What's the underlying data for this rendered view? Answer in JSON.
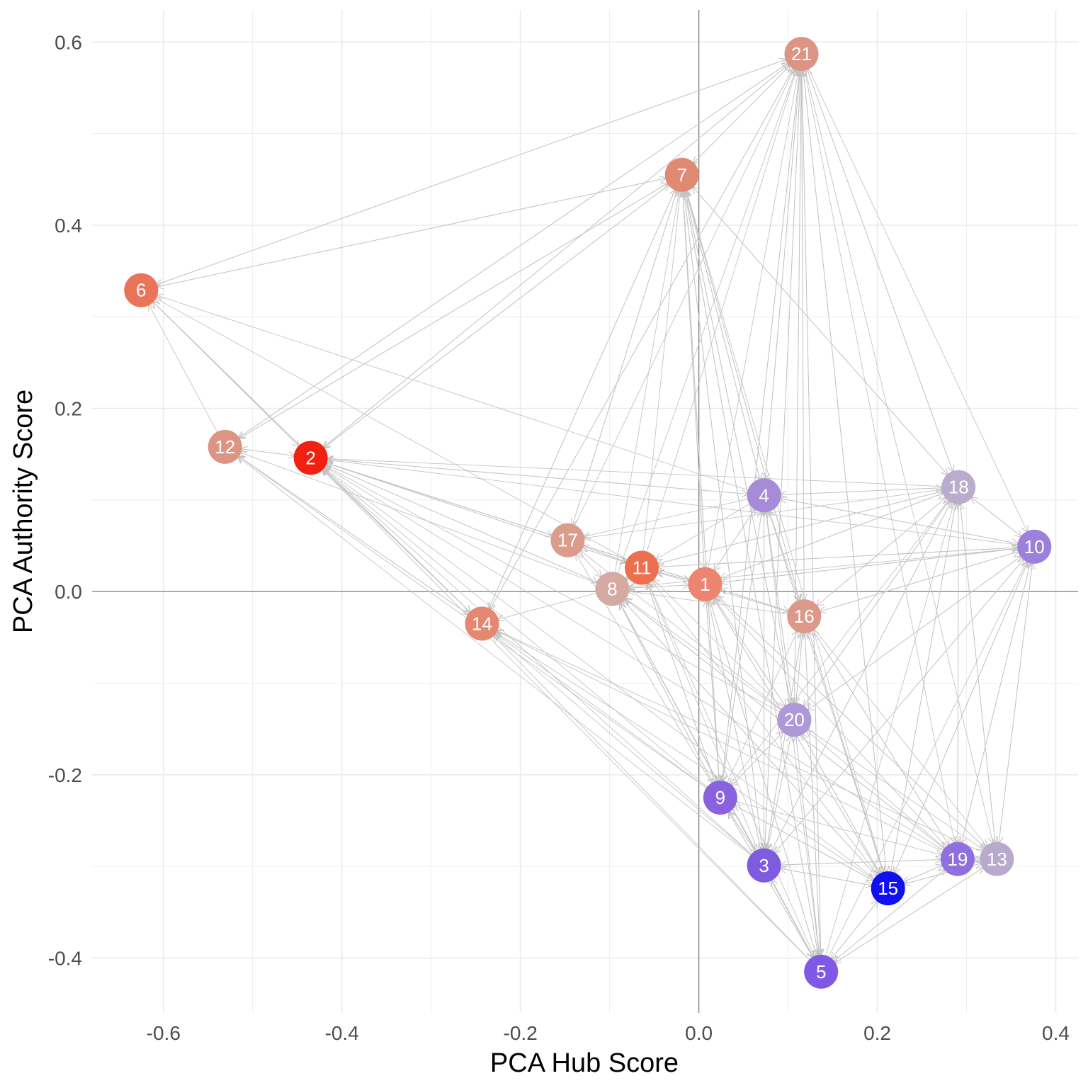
{
  "chart_data": {
    "type": "scatter",
    "xlabel": "PCA Hub Score",
    "ylabel": "PCA Authority Score",
    "xlim": [
      -0.68,
      0.425
    ],
    "ylim": [
      -0.46,
      0.635
    ],
    "x_ticks": [
      -0.6,
      -0.4,
      -0.2,
      0.0,
      0.2,
      0.4
    ],
    "x_tick_labels": [
      "-0.6",
      "-0.4",
      "-0.2",
      "0.0",
      "0.2",
      "0.4"
    ],
    "y_ticks": [
      -0.4,
      -0.2,
      0.0,
      0.2,
      0.4,
      0.6
    ],
    "y_tick_labels": [
      "-0.4",
      "-0.2",
      "0.0",
      "0.2",
      "0.4",
      "0.6"
    ],
    "grid": true,
    "reference_lines": {
      "x": 0,
      "y": 0
    },
    "edge_color": "#c4c4c4",
    "nodes": [
      {
        "label": "1",
        "x": 0.007,
        "y": 0.008,
        "color": "#ec8570"
      },
      {
        "label": "2",
        "x": -0.435,
        "y": 0.146,
        "color": "#f22010"
      },
      {
        "label": "3",
        "x": 0.073,
        "y": -0.299,
        "color": "#7f5be0"
      },
      {
        "label": "4",
        "x": 0.073,
        "y": 0.105,
        "color": "#a78bd8"
      },
      {
        "label": "5",
        "x": 0.137,
        "y": -0.415,
        "color": "#8058e8"
      },
      {
        "label": "6",
        "x": -0.625,
        "y": 0.329,
        "color": "#ea7458"
      },
      {
        "label": "7",
        "x": -0.019,
        "y": 0.455,
        "color": "#e08a74"
      },
      {
        "label": "8",
        "x": -0.097,
        "y": 0.003,
        "color": "#d4aaa2"
      },
      {
        "label": "9",
        "x": 0.024,
        "y": -0.225,
        "color": "#8a62e0"
      },
      {
        "label": "10",
        "x": 0.376,
        "y": 0.049,
        "color": "#9c80dc"
      },
      {
        "label": "11",
        "x": -0.064,
        "y": 0.026,
        "color": "#ec7050"
      },
      {
        "label": "12",
        "x": -0.531,
        "y": 0.158,
        "color": "#de9482"
      },
      {
        "label": "13",
        "x": 0.334,
        "y": -0.292,
        "color": "#b8aacc"
      },
      {
        "label": "14",
        "x": -0.243,
        "y": -0.035,
        "color": "#e48872"
      },
      {
        "label": "15",
        "x": 0.212,
        "y": -0.324,
        "color": "#1010f0"
      },
      {
        "label": "16",
        "x": 0.118,
        "y": -0.027,
        "color": "#dc9888"
      },
      {
        "label": "17",
        "x": -0.147,
        "y": 0.056,
        "color": "#dc9c8c"
      },
      {
        "label": "18",
        "x": 0.291,
        "y": 0.114,
        "color": "#baaccc"
      },
      {
        "label": "19",
        "x": 0.29,
        "y": -0.292,
        "color": "#9070e0"
      },
      {
        "label": "20",
        "x": 0.107,
        "y": -0.14,
        "color": "#ae98d8"
      },
      {
        "label": "21",
        "x": 0.115,
        "y": 0.587,
        "color": "#dc9484"
      }
    ],
    "edges": [
      [
        "7",
        "21"
      ],
      [
        "6",
        "21"
      ],
      [
        "12",
        "21"
      ],
      [
        "2",
        "21"
      ],
      [
        "14",
        "21"
      ],
      [
        "17",
        "21"
      ],
      [
        "8",
        "21"
      ],
      [
        "11",
        "21"
      ],
      [
        "1",
        "21"
      ],
      [
        "4",
        "21"
      ],
      [
        "16",
        "21"
      ],
      [
        "20",
        "21"
      ],
      [
        "9",
        "21"
      ],
      [
        "3",
        "21"
      ],
      [
        "5",
        "21"
      ],
      [
        "15",
        "21"
      ],
      [
        "18",
        "21"
      ],
      [
        "21",
        "7"
      ],
      [
        "6",
        "7"
      ],
      [
        "12",
        "7"
      ],
      [
        "2",
        "7"
      ],
      [
        "14",
        "7"
      ],
      [
        "17",
        "7"
      ],
      [
        "8",
        "7"
      ],
      [
        "11",
        "7"
      ],
      [
        "1",
        "7"
      ],
      [
        "4",
        "7"
      ],
      [
        "16",
        "7"
      ],
      [
        "20",
        "7"
      ],
      [
        "9",
        "7"
      ],
      [
        "3",
        "7"
      ],
      [
        "5",
        "7"
      ],
      [
        "15",
        "7"
      ],
      [
        "18",
        "7"
      ],
      [
        "21",
        "6"
      ],
      [
        "7",
        "6"
      ],
      [
        "2",
        "6"
      ],
      [
        "12",
        "6"
      ],
      [
        "14",
        "6"
      ],
      [
        "11",
        "6"
      ],
      [
        "4",
        "6"
      ],
      [
        "7",
        "12"
      ],
      [
        "21",
        "12"
      ],
      [
        "2",
        "12"
      ],
      [
        "14",
        "12"
      ],
      [
        "8",
        "12"
      ],
      [
        "9",
        "12"
      ],
      [
        "3",
        "12"
      ],
      [
        "6",
        "2"
      ],
      [
        "7",
        "2"
      ],
      [
        "21",
        "2"
      ],
      [
        "12",
        "2"
      ],
      [
        "14",
        "2"
      ],
      [
        "17",
        "2"
      ],
      [
        "8",
        "2"
      ],
      [
        "11",
        "2"
      ],
      [
        "1",
        "2"
      ],
      [
        "4",
        "2"
      ],
      [
        "16",
        "2"
      ],
      [
        "18",
        "2"
      ],
      [
        "10",
        "2"
      ],
      [
        "20",
        "2"
      ],
      [
        "9",
        "2"
      ],
      [
        "3",
        "2"
      ],
      [
        "5",
        "2"
      ],
      [
        "15",
        "2"
      ],
      [
        "19",
        "2"
      ],
      [
        "7",
        "14"
      ],
      [
        "21",
        "14"
      ],
      [
        "6",
        "14"
      ],
      [
        "2",
        "14"
      ],
      [
        "12",
        "14"
      ],
      [
        "8",
        "14"
      ],
      [
        "9",
        "14"
      ],
      [
        "3",
        "14"
      ],
      [
        "5",
        "14"
      ],
      [
        "15",
        "14"
      ],
      [
        "19",
        "14"
      ],
      [
        "13",
        "14"
      ],
      [
        "7",
        "17"
      ],
      [
        "2",
        "17"
      ],
      [
        "11",
        "17"
      ],
      [
        "4",
        "17"
      ],
      [
        "18",
        "17"
      ],
      [
        "20",
        "17"
      ],
      [
        "9",
        "17"
      ],
      [
        "17",
        "8"
      ],
      [
        "2",
        "8"
      ],
      [
        "11",
        "8"
      ],
      [
        "1",
        "8"
      ],
      [
        "16",
        "8"
      ],
      [
        "10",
        "8"
      ],
      [
        "20",
        "8"
      ],
      [
        "9",
        "8"
      ],
      [
        "3",
        "8"
      ],
      [
        "5",
        "8"
      ],
      [
        "15",
        "8"
      ],
      [
        "19",
        "8"
      ],
      [
        "2",
        "11"
      ],
      [
        "17",
        "11"
      ],
      [
        "8",
        "11"
      ],
      [
        "1",
        "11"
      ],
      [
        "4",
        "11"
      ],
      [
        "16",
        "11"
      ],
      [
        "18",
        "11"
      ],
      [
        "10",
        "11"
      ],
      [
        "20",
        "11"
      ],
      [
        "9",
        "11"
      ],
      [
        "3",
        "11"
      ],
      [
        "5",
        "11"
      ],
      [
        "15",
        "11"
      ],
      [
        "11",
        "1"
      ],
      [
        "8",
        "1"
      ],
      [
        "4",
        "1"
      ],
      [
        "16",
        "1"
      ],
      [
        "18",
        "1"
      ],
      [
        "10",
        "1"
      ],
      [
        "20",
        "1"
      ],
      [
        "9",
        "1"
      ],
      [
        "3",
        "1"
      ],
      [
        "5",
        "1"
      ],
      [
        "15",
        "1"
      ],
      [
        "19",
        "1"
      ],
      [
        "13",
        "1"
      ],
      [
        "21",
        "4"
      ],
      [
        "7",
        "4"
      ],
      [
        "2",
        "4"
      ],
      [
        "1",
        "4"
      ],
      [
        "18",
        "4"
      ],
      [
        "10",
        "4"
      ],
      [
        "20",
        "4"
      ],
      [
        "9",
        "4"
      ],
      [
        "3",
        "4"
      ],
      [
        "15",
        "4"
      ],
      [
        "7",
        "18"
      ],
      [
        "21",
        "18"
      ],
      [
        "4",
        "18"
      ],
      [
        "1",
        "18"
      ],
      [
        "11",
        "18"
      ],
      [
        "10",
        "18"
      ],
      [
        "16",
        "18"
      ],
      [
        "20",
        "18"
      ],
      [
        "3",
        "18"
      ],
      [
        "5",
        "18"
      ],
      [
        "15",
        "18"
      ],
      [
        "19",
        "18"
      ],
      [
        "13",
        "18"
      ],
      [
        "18",
        "10"
      ],
      [
        "4",
        "10"
      ],
      [
        "1",
        "10"
      ],
      [
        "11",
        "10"
      ],
      [
        "16",
        "10"
      ],
      [
        "20",
        "10"
      ],
      [
        "3",
        "10"
      ],
      [
        "5",
        "10"
      ],
      [
        "15",
        "10"
      ],
      [
        "19",
        "10"
      ],
      [
        "13",
        "10"
      ],
      [
        "4",
        "16"
      ],
      [
        "1",
        "16"
      ],
      [
        "18",
        "16"
      ],
      [
        "10",
        "16"
      ],
      [
        "20",
        "16"
      ],
      [
        "9",
        "16"
      ],
      [
        "3",
        "16"
      ],
      [
        "5",
        "16"
      ],
      [
        "15",
        "16"
      ],
      [
        "19",
        "16"
      ],
      [
        "4",
        "20"
      ],
      [
        "1",
        "20"
      ],
      [
        "16",
        "20"
      ],
      [
        "18",
        "20"
      ],
      [
        "10",
        "20"
      ],
      [
        "9",
        "20"
      ],
      [
        "3",
        "20"
      ],
      [
        "5",
        "20"
      ],
      [
        "15",
        "20"
      ],
      [
        "19",
        "20"
      ],
      [
        "8",
        "9"
      ],
      [
        "11",
        "9"
      ],
      [
        "1",
        "9"
      ],
      [
        "4",
        "9"
      ],
      [
        "20",
        "9"
      ],
      [
        "3",
        "9"
      ],
      [
        "5",
        "9"
      ],
      [
        "15",
        "9"
      ],
      [
        "18",
        "9"
      ],
      [
        "9",
        "3"
      ],
      [
        "20",
        "3"
      ],
      [
        "4",
        "3"
      ],
      [
        "1",
        "3"
      ],
      [
        "16",
        "3"
      ],
      [
        "15",
        "3"
      ],
      [
        "5",
        "3"
      ],
      [
        "18",
        "3"
      ],
      [
        "10",
        "3"
      ],
      [
        "19",
        "3"
      ],
      [
        "3",
        "5"
      ],
      [
        "9",
        "5"
      ],
      [
        "20",
        "5"
      ],
      [
        "16",
        "5"
      ],
      [
        "15",
        "5"
      ],
      [
        "19",
        "5"
      ],
      [
        "13",
        "5"
      ],
      [
        "1",
        "5"
      ],
      [
        "8",
        "5"
      ],
      [
        "4",
        "5"
      ],
      [
        "5",
        "15"
      ],
      [
        "3",
        "15"
      ],
      [
        "9",
        "15"
      ],
      [
        "20",
        "15"
      ],
      [
        "16",
        "15"
      ],
      [
        "1",
        "15"
      ],
      [
        "4",
        "15"
      ],
      [
        "18",
        "15"
      ],
      [
        "10",
        "15"
      ],
      [
        "19",
        "15"
      ],
      [
        "13",
        "15"
      ],
      [
        "8",
        "15"
      ],
      [
        "15",
        "19"
      ],
      [
        "5",
        "19"
      ],
      [
        "9",
        "19"
      ],
      [
        "16",
        "19"
      ],
      [
        "18",
        "19"
      ],
      [
        "10",
        "19"
      ],
      [
        "13",
        "19"
      ],
      [
        "3",
        "19"
      ],
      [
        "8",
        "19"
      ],
      [
        "15",
        "13"
      ],
      [
        "5",
        "13"
      ],
      [
        "19",
        "13"
      ],
      [
        "16",
        "13"
      ],
      [
        "18",
        "13"
      ],
      [
        "10",
        "13"
      ],
      [
        "1",
        "13"
      ],
      [
        "20",
        "13"
      ],
      [
        "21",
        "10"
      ],
      [
        "21",
        "16"
      ],
      [
        "21",
        "20"
      ],
      [
        "21",
        "3"
      ],
      [
        "21",
        "15"
      ],
      [
        "21",
        "19"
      ],
      [
        "21",
        "13"
      ],
      [
        "21",
        "9"
      ],
      [
        "21",
        "5"
      ],
      [
        "7",
        "1"
      ],
      [
        "7",
        "16"
      ],
      [
        "7",
        "20"
      ],
      [
        "7",
        "9"
      ],
      [
        "7",
        "3"
      ],
      [
        "7",
        "5"
      ]
    ]
  }
}
